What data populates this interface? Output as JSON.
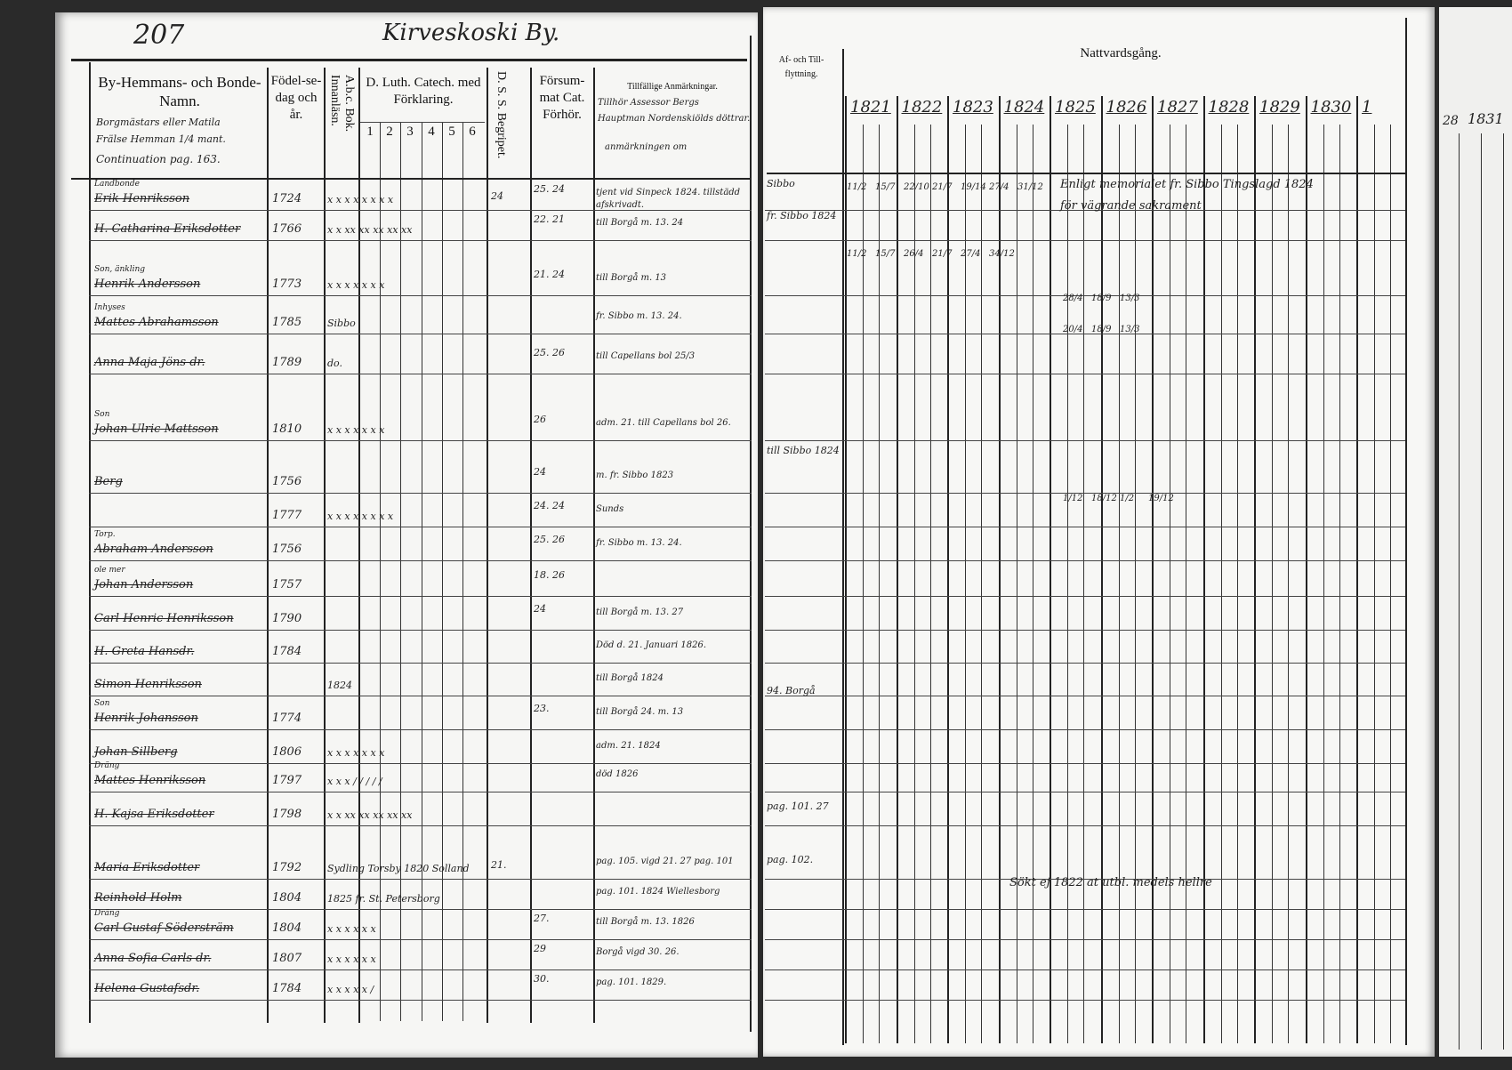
{
  "left_page": {
    "page_number": "207",
    "village_title": "Kirveskoski By.",
    "headers": {
      "name": "By-Hemmans- och Bonde-Namn.",
      "birth": "Födel-se-dag och år.",
      "abc": "A.b.c. Bok. Innanläsn.",
      "catechism": "D. Luth. Catech. med Förklaring.",
      "catechism_sub": [
        "1",
        "2",
        "3",
        "4",
        "5",
        "6"
      ],
      "dss": "D. S. S. Begripet.",
      "missed": "Försum-mat Cat. Förhör.",
      "notes": "Tillfällige Anmärkningar."
    },
    "header_handwritten": {
      "farm": "Borgmästars eller Matila",
      "farm_size": "Frälse Hemman 1/4 mant.",
      "continuation": "Continuation pag. 163.",
      "notes_1": "Tillhör Assessor Bergs",
      "notes_2": "Hauptman Nordenskiölds döttrar.",
      "notes_3": "anmärkningen om"
    },
    "rows": [
      {
        "title": "Landbonde",
        "name": "Erik Henriksson",
        "birth": "1724",
        "marks": "x  x x  x  x  x  x  x",
        "dss": "24",
        "missed": "25. 24",
        "notes": "tjent vid Sinpeck 1824. tillstädd afskrivadt."
      },
      {
        "title": "",
        "name": "H. Catharina Eriksdotter",
        "birth": "1766",
        "marks": "x  x xx xx xx xx xx",
        "dss": "",
        "missed": "22. 21",
        "notes": "till Borgå m. 13. 24"
      },
      {
        "title": "Son, änkling",
        "name": "Henrik Andersson",
        "birth": "1773",
        "marks": "x   x x  x  x  x  x",
        "dss": "",
        "missed": "21. 24",
        "notes": "till Borgå m. 13"
      },
      {
        "title": "Inhyses",
        "name": "Mattes Abrahamsson",
        "birth": "1785",
        "marks": "Sibbo",
        "dss": "",
        "missed": "",
        "notes": "fr. Sibbo m. 13. 24."
      },
      {
        "title": "",
        "name": "Anna Maja Jöns dr.",
        "birth": "1789",
        "marks": "do.",
        "dss": "",
        "missed": "25. 26",
        "notes": "till Capellans bol 25/3"
      },
      {
        "title": "Son",
        "name": "Johan Ulric Mattsson",
        "birth": "1810",
        "marks": "x   x  x  x  x  x  x",
        "dss": "",
        "missed": "26",
        "notes": "adm. 21. till Capellans bol 26."
      },
      {
        "title": "",
        "name": "Berg",
        "name2": "",
        "birth": "1756",
        "marks": "",
        "dss": "",
        "missed": "24",
        "notes": "m. fr. Sibbo 1823"
      },
      {
        "title": "",
        "name": "",
        "birth": "1777",
        "marks": "x x x x x x x x",
        "dss": "",
        "missed": "24. 24",
        "notes": "Sunds"
      },
      {
        "title": "Torp.",
        "name": "Abraham Andersson",
        "birth": "1756",
        "marks": "",
        "dss": "",
        "missed": "25. 26",
        "notes": "fr. Sibbo m. 13. 24."
      },
      {
        "title": "ole mer",
        "name": "Johan Andersson",
        "birth": "1757",
        "marks": "",
        "dss": "",
        "missed": "18. 26",
        "notes": ""
      },
      {
        "title": "",
        "name": "Carl Henric Henriksson",
        "birth": "1790",
        "marks": "",
        "dss": "",
        "missed": "24",
        "notes": "till Borgå m. 13. 27"
      },
      {
        "title": "",
        "name": "H. Greta Hansdr.",
        "birth": "1784",
        "marks": "",
        "dss": "",
        "missed": "",
        "notes": "Död d. 21. Januari 1826."
      },
      {
        "title": "",
        "name": "Simon Henriksson",
        "birth": "",
        "marks": "1824",
        "dss": "",
        "missed": "",
        "notes": "till Borgå 1824"
      },
      {
        "title": "Son",
        "name": "Henrik Johansson",
        "birth": "1774",
        "marks": "",
        "dss": "",
        "missed": "23.",
        "notes": "till Borgå 24. m. 13"
      },
      {
        "title": "",
        "name": "Johan Sillberg",
        "birth": "1806",
        "marks": "x x x x x x x",
        "dss": "",
        "missed": "",
        "notes": "adm. 21. 1824"
      },
      {
        "title": "Dräng",
        "name": "Mattes Henriksson",
        "birth": "1797",
        "marks": "x  x x  /  /  /  /  /",
        "dss": "",
        "missed": "",
        "notes": "död 1826"
      },
      {
        "title": "",
        "name": "H. Kajsa Eriksdotter",
        "birth": "1798",
        "marks": "x  x xx xx xx xx xx",
        "dss": "",
        "missed": "",
        "notes": ""
      },
      {
        "title": "",
        "name": "Maria Eriksdotter",
        "birth": "1792",
        "marks": "Sydling Torsby 1820 Solland",
        "dss": "21.",
        "missed": "",
        "notes": "pag. 105. vigd 21. 27 pag. 101"
      },
      {
        "title": "",
        "name": "Reinhold Holm",
        "birth": "1804",
        "marks": "1825 fr. St. Petersborg",
        "dss": "",
        "missed": "",
        "notes": "pag. 101. 1824 Wiellesborg"
      },
      {
        "title": "Dräng",
        "name": "Carl Gustaf Södersträm",
        "birth": "1804",
        "marks": "x x x x x x",
        "dss": "",
        "missed": "27.",
        "notes": "till Borgå m. 13. 1826"
      },
      {
        "title": "",
        "name": "Anna Sofia Carls dr.",
        "birth": "1807",
        "marks": "x x x x x x",
        "dss": "",
        "missed": "29",
        "notes": "Borgå vigd 30. 26."
      },
      {
        "title": "",
        "name": "Helena Gustafsdr.",
        "birth": "1784",
        "marks": "x  x x x x /",
        "dss": "",
        "missed": "30.",
        "notes": "pag. 101. 1829."
      }
    ]
  },
  "right_page": {
    "headers": {
      "moving": "Af- och Till-flyttning.",
      "communion": "Nattvardsgång."
    },
    "years": [
      "1821",
      "1822",
      "1823",
      "1824",
      "1825",
      "1826",
      "1827",
      "1828",
      "1829",
      "1830",
      "1"
    ],
    "moving_entries": [
      "Sibbo",
      "till Sibbo 1824",
      "fr. Sibbo 1824",
      "94. Borgå",
      "pag. 101. 27",
      "pag. 102."
    ],
    "remarks": [
      "Enligt memorialet fr. Sibbo Tingslagd 1824",
      "för vägrande sakrament",
      "Sökt ej 1822 at utbl. medels hellre"
    ],
    "communion_marks": [
      [
        "11/2",
        "15/7",
        "22/10",
        "21/7",
        "19/14",
        "27/4",
        "31/12"
      ],
      [
        "11/2",
        "15/7",
        "26/4",
        "21/7",
        "27/4",
        "34/12"
      ],
      [
        "28/4",
        "18/9",
        "13/3"
      ],
      [
        "20/4",
        "18/9",
        "13/3"
      ],
      [
        "1/12",
        "18/12",
        "1/2",
        "19/12"
      ]
    ]
  },
  "next_page": {
    "years": [
      "28",
      "1831"
    ]
  }
}
